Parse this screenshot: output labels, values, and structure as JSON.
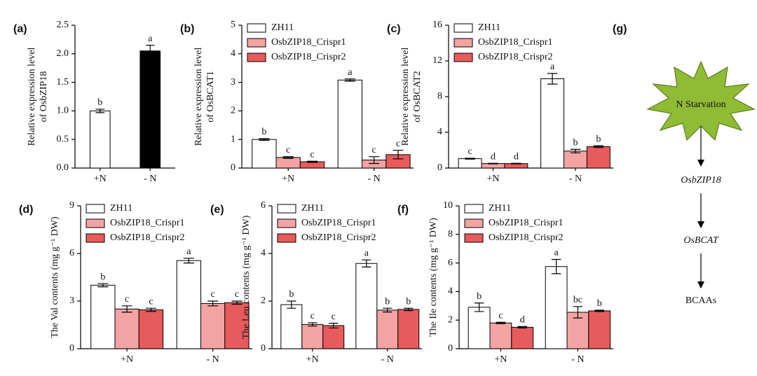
{
  "chart_data": [
    {
      "type": "bar",
      "panel_label": "(a)",
      "ylabel": [
        "Relative expression level",
        "of OsbZIP18"
      ],
      "categories": [
        "+N",
        "- N"
      ],
      "values": [
        1.0,
        2.05
      ],
      "errors": [
        0.03,
        0.1
      ],
      "letters": [
        "b",
        "a"
      ],
      "colors": [
        "#ffffff",
        "#000000"
      ],
      "ylim": [
        0,
        2.5
      ],
      "yticks": [
        {
          "value": 0,
          "label": "0.0"
        },
        0.5,
        {
          "value": 1,
          "label": "1.0"
        },
        1.5,
        {
          "value": 2,
          "label": "2.0"
        },
        2.5
      ]
    },
    {
      "type": "bar",
      "panel_label": "(b)",
      "ylabel": [
        "Relative expression level",
        "of OsBCAT1"
      ],
      "categories": [
        "+N",
        "- N"
      ],
      "series": [
        {
          "name": "ZH11",
          "color": "#ffffff",
          "values": [
            1.0,
            3.08
          ],
          "errors": [
            0.03,
            0.04
          ],
          "letters": [
            "b",
            "a"
          ]
        },
        {
          "name": "OsbZIP18_Crispr1",
          "color": "#f4a3a3",
          "values": [
            0.37,
            0.28
          ],
          "errors": [
            0.03,
            0.12
          ],
          "letters": [
            "c",
            "c"
          ]
        },
        {
          "name": "OsbZIP18_Crispr2",
          "color": "#e85b5d",
          "values": [
            0.22,
            0.47
          ],
          "errors": [
            0.02,
            0.15
          ],
          "letters": [
            "c",
            "c"
          ]
        }
      ],
      "ylim": [
        0,
        5
      ],
      "yticks": [
        0,
        1,
        2,
        3,
        4,
        5
      ]
    },
    {
      "type": "bar",
      "panel_label": "(c)",
      "ylabel": [
        "Relative expression level",
        "of OsBCAT2"
      ],
      "categories": [
        "+N",
        "- N"
      ],
      "series": [
        {
          "name": "ZH11",
          "color": "#ffffff",
          "values": [
            1.05,
            10.0
          ],
          "errors": [
            0.05,
            0.6
          ],
          "letters": [
            "c",
            "a"
          ]
        },
        {
          "name": "OsbZIP18_Crispr1",
          "color": "#f4a3a3",
          "values": [
            0.5,
            1.9
          ],
          "errors": [
            0.03,
            0.2
          ],
          "letters": [
            "d",
            "b"
          ]
        },
        {
          "name": "OsbZIP18_Crispr2",
          "color": "#e85b5d",
          "values": [
            0.5,
            2.4
          ],
          "errors": [
            0.03,
            0.1
          ],
          "letters": [
            "d",
            "b"
          ]
        }
      ],
      "ylim": [
        0,
        16
      ],
      "yticks": [
        0,
        4,
        8,
        12,
        16
      ]
    },
    {
      "type": "bar",
      "panel_label": "(d)",
      "ylabel": [
        "The Val contents (mg g⁻¹ DW)"
      ],
      "categories": [
        "+N",
        "- N"
      ],
      "series": [
        {
          "name": "ZH11",
          "color": "#ffffff",
          "values": [
            4.0,
            5.55
          ],
          "errors": [
            0.1,
            0.15
          ],
          "letters": [
            "b",
            "a"
          ]
        },
        {
          "name": "OsbZIP18_Crispr1",
          "color": "#f4a3a3",
          "values": [
            2.5,
            2.85
          ],
          "errors": [
            0.2,
            0.15
          ],
          "letters": [
            "c",
            "c"
          ]
        },
        {
          "name": "OsbZIP18_Crispr2",
          "color": "#e85b5d",
          "values": [
            2.45,
            2.9
          ],
          "errors": [
            0.1,
            0.1
          ],
          "letters": [
            "c",
            "c"
          ]
        }
      ],
      "ylim": [
        0,
        9
      ],
      "yticks": [
        0,
        3,
        6,
        9
      ]
    },
    {
      "type": "bar",
      "panel_label": "(e)",
      "ylabel": [
        "The Leu contents (mg g⁻¹ DW)"
      ],
      "categories": [
        "+N",
        "- N"
      ],
      "series": [
        {
          "name": "ZH11",
          "color": "#ffffff",
          "values": [
            1.85,
            3.58
          ],
          "errors": [
            0.15,
            0.15
          ],
          "letters": [
            "b",
            "a"
          ]
        },
        {
          "name": "OsbZIP18_Crispr1",
          "color": "#f4a3a3",
          "values": [
            1.02,
            1.62
          ],
          "errors": [
            0.07,
            0.08
          ],
          "letters": [
            "c",
            "b"
          ]
        },
        {
          "name": "OsbZIP18_Crispr2",
          "color": "#e85b5d",
          "values": [
            0.97,
            1.65
          ],
          "errors": [
            0.1,
            0.05
          ],
          "letters": [
            "c",
            "b"
          ]
        }
      ],
      "ylim": [
        0,
        6
      ],
      "yticks": [
        0,
        2,
        4,
        6
      ]
    },
    {
      "type": "bar",
      "panel_label": "(f)",
      "ylabel": [
        "The Ile contents (mg g⁻¹ DW)"
      ],
      "categories": [
        "+N",
        "- N"
      ],
      "series": [
        {
          "name": "ZH11",
          "color": "#ffffff",
          "values": [
            2.9,
            5.75
          ],
          "errors": [
            0.3,
            0.5
          ],
          "letters": [
            "b",
            "a"
          ]
        },
        {
          "name": "OsbZIP18_Crispr1",
          "color": "#f4a3a3",
          "values": [
            1.8,
            2.55
          ],
          "errors": [
            0.05,
            0.4
          ],
          "letters": [
            "c",
            "bc"
          ]
        },
        {
          "name": "OsbZIP18_Crispr2",
          "color": "#e85b5d",
          "values": [
            1.5,
            2.65
          ],
          "errors": [
            0.05,
            0.05
          ],
          "letters": [
            "d",
            "b"
          ]
        }
      ],
      "ylim": [
        0,
        10
      ],
      "yticks": [
        0,
        2,
        4,
        6,
        8,
        10
      ]
    }
  ],
  "diagram": {
    "panel_label": "(g)",
    "nodes": [
      "N Starvation",
      "OsbZIP18",
      "OsBCAT",
      "BCAAs"
    ]
  }
}
